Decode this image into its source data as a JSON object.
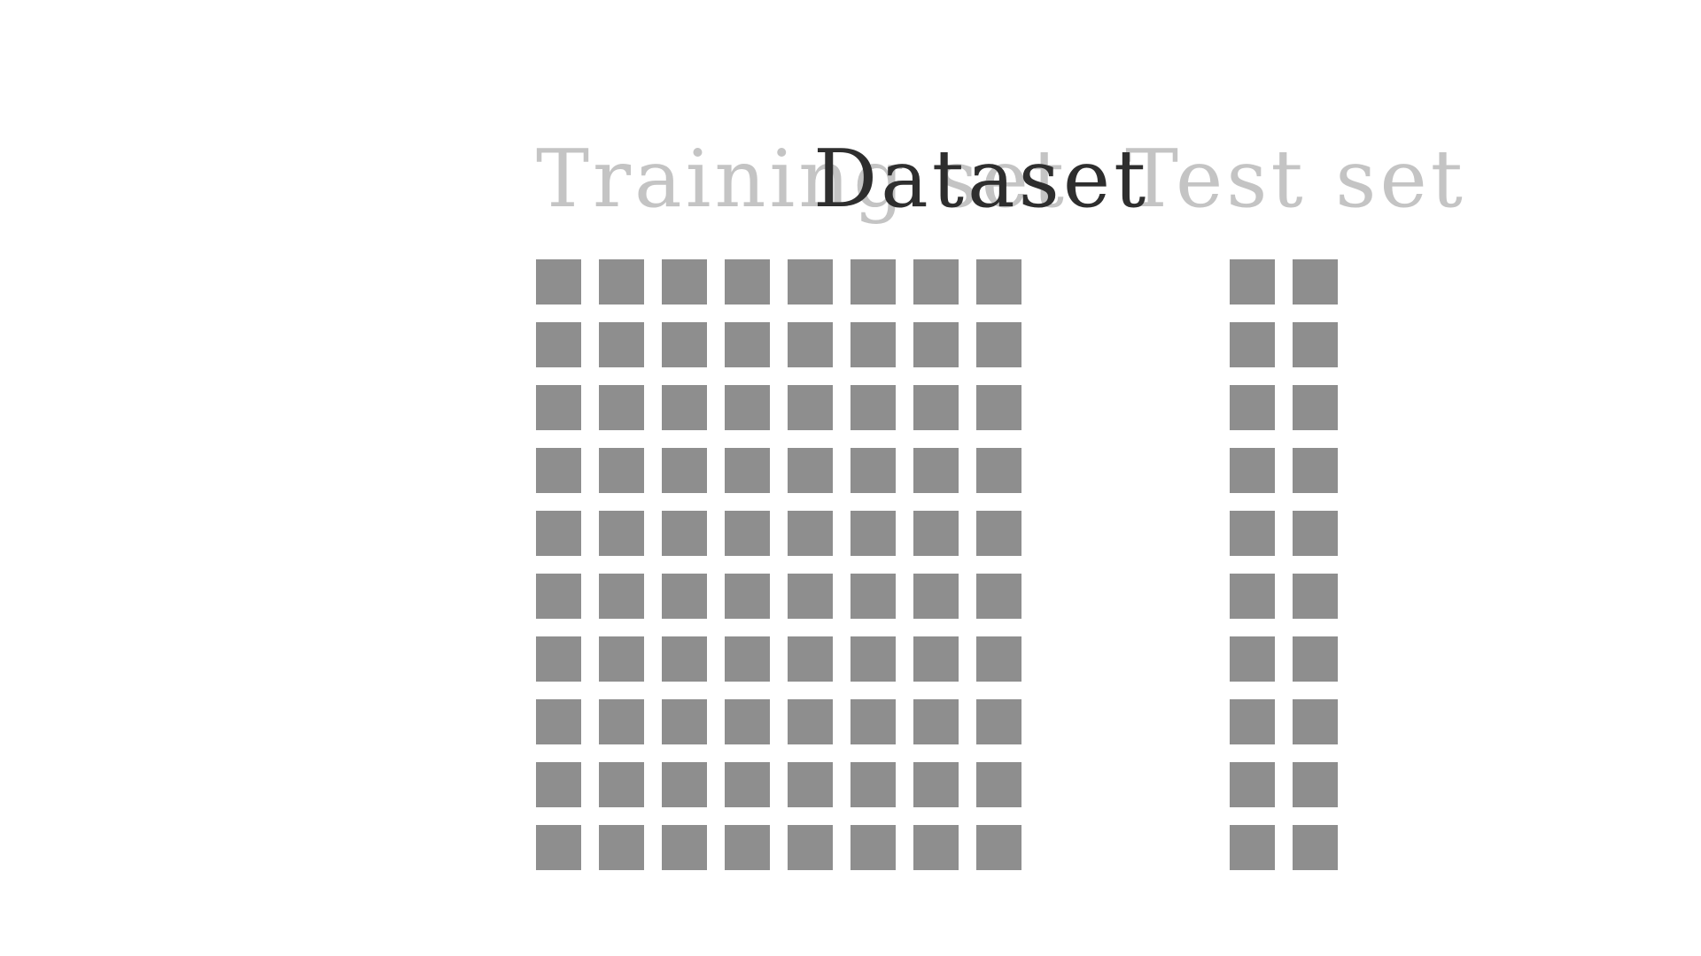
{
  "labels": {
    "training": "Training set",
    "dataset": "Dataset",
    "test": "Test set"
  },
  "colors": {
    "sample": "#8e8e8e",
    "faded_label": "#c4c4c4",
    "active_label": "#2e2e2e"
  },
  "groups": {
    "training": {
      "columns": 8,
      "rows": 10
    },
    "test": {
      "columns": 2,
      "rows": 10
    }
  }
}
